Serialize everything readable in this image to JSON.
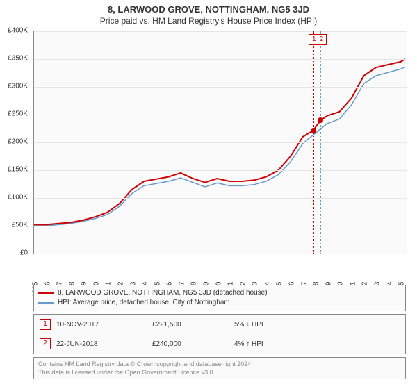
{
  "title": "8, LARWOOD GROVE, NOTTINGHAM, NG5 3JD",
  "subtitle": "Price paid vs. HM Land Registry's House Price Index (HPI)",
  "chart": {
    "type": "line",
    "background_color": "#fafafa",
    "border_color": "#888888",
    "grid_color": "#e5e5e5",
    "xlim": [
      1995,
      2025.5
    ],
    "ylim": [
      0,
      400000
    ],
    "ytick_step": 50000,
    "y_ticks": [
      "£0",
      "£50K",
      "£100K",
      "£150K",
      "£200K",
      "£250K",
      "£300K",
      "£350K",
      "£400K"
    ],
    "x_ticks": [
      "1995",
      "1996",
      "1997",
      "1998",
      "1999",
      "2000",
      "2001",
      "2002",
      "2003",
      "2004",
      "2005",
      "2006",
      "2007",
      "2008",
      "2009",
      "2010",
      "2011",
      "2012",
      "2013",
      "2014",
      "2015",
      "2016",
      "2017",
      "2018",
      "2019",
      "2020",
      "2021",
      "2022",
      "2023",
      "2024",
      "2025"
    ],
    "series": [
      {
        "name": "property",
        "label": "8, LARWOOD GROVE, NOTTINGHAM, NG5 3JD (detached house)",
        "color": "#cc0000",
        "width": 2,
        "points": [
          [
            1995,
            52000
          ],
          [
            1996,
            52000
          ],
          [
            1997,
            54000
          ],
          [
            1998,
            56000
          ],
          [
            1999,
            60000
          ],
          [
            2000,
            66000
          ],
          [
            2001,
            74000
          ],
          [
            2002,
            90000
          ],
          [
            2003,
            115000
          ],
          [
            2004,
            130000
          ],
          [
            2005,
            134000
          ],
          [
            2006,
            138000
          ],
          [
            2007,
            145000
          ],
          [
            2008,
            135000
          ],
          [
            2009,
            128000
          ],
          [
            2010,
            135000
          ],
          [
            2011,
            130000
          ],
          [
            2012,
            130000
          ],
          [
            2013,
            132000
          ],
          [
            2014,
            138000
          ],
          [
            2015,
            150000
          ],
          [
            2016,
            175000
          ],
          [
            2017,
            210000
          ],
          [
            2017.86,
            221500
          ],
          [
            2018,
            226000
          ],
          [
            2018.47,
            240000
          ],
          [
            2019,
            248000
          ],
          [
            2020,
            255000
          ],
          [
            2021,
            280000
          ],
          [
            2022,
            320000
          ],
          [
            2023,
            335000
          ],
          [
            2024,
            340000
          ],
          [
            2025,
            345000
          ],
          [
            2025.4,
            350000
          ]
        ]
      },
      {
        "name": "hpi",
        "label": "HPI: Average price, detached house, City of Nottingham",
        "color": "#6699cc",
        "width": 1.5,
        "points": [
          [
            1995,
            50000
          ],
          [
            1996,
            50000
          ],
          [
            1997,
            52000
          ],
          [
            1998,
            54000
          ],
          [
            1999,
            58000
          ],
          [
            2000,
            63000
          ],
          [
            2001,
            70000
          ],
          [
            2002,
            85000
          ],
          [
            2003,
            108000
          ],
          [
            2004,
            122000
          ],
          [
            2005,
            126000
          ],
          [
            2006,
            130000
          ],
          [
            2007,
            136000
          ],
          [
            2008,
            128000
          ],
          [
            2009,
            120000
          ],
          [
            2010,
            127000
          ],
          [
            2011,
            122000
          ],
          [
            2012,
            122000
          ],
          [
            2013,
            124000
          ],
          [
            2014,
            130000
          ],
          [
            2015,
            142000
          ],
          [
            2016,
            165000
          ],
          [
            2017,
            198000
          ],
          [
            2018,
            216000
          ],
          [
            2019,
            234000
          ],
          [
            2020,
            242000
          ],
          [
            2021,
            268000
          ],
          [
            2022,
            306000
          ],
          [
            2023,
            320000
          ],
          [
            2024,
            326000
          ],
          [
            2025,
            332000
          ],
          [
            2025.4,
            336000
          ]
        ]
      }
    ],
    "events": [
      {
        "n": "1",
        "year": 2017.86,
        "price": 221500,
        "color": "#cc0000"
      },
      {
        "n": "2",
        "year": 2018.47,
        "price": 240000,
        "color": "#6699cc"
      }
    ]
  },
  "legend": {
    "items": [
      {
        "color": "#cc0000",
        "label": "8, LARWOOD GROVE, NOTTINGHAM, NG5 3JD (detached house)"
      },
      {
        "color": "#6699cc",
        "label": "HPI: Average price, detached house, City of Nottingham"
      }
    ]
  },
  "sales": [
    {
      "n": "1",
      "date": "10-NOV-2017",
      "price": "£221,500",
      "delta": "5% ↓ HPI"
    },
    {
      "n": "2",
      "date": "22-JUN-2018",
      "price": "£240,000",
      "delta": "4% ↑ HPI"
    }
  ],
  "footer": {
    "line1": "Contains HM Land Registry data © Crown copyright and database right 2024.",
    "line2": "This data is licensed under the Open Government Licence v3.0."
  }
}
